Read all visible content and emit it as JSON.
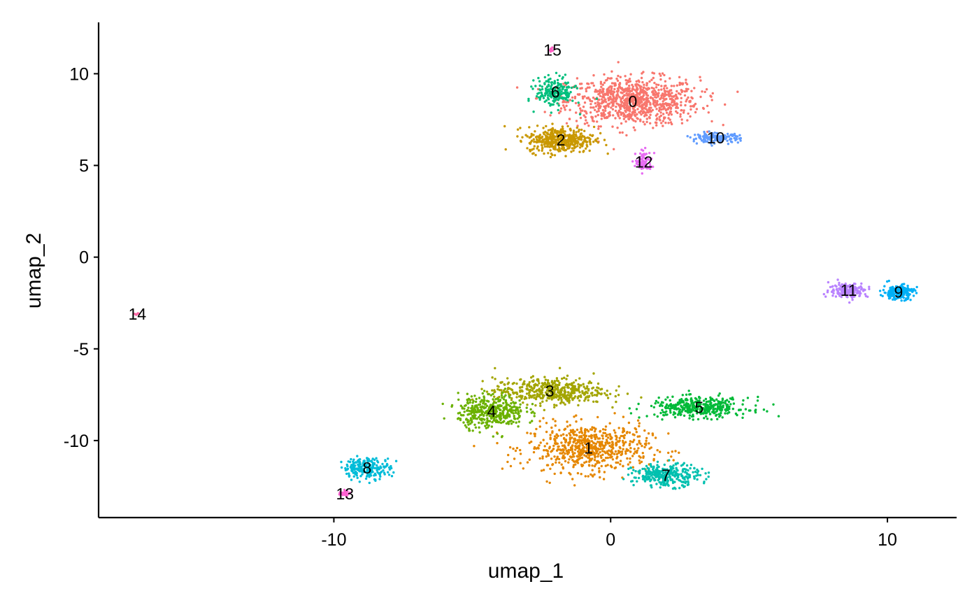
{
  "chart_data": {
    "type": "scatter",
    "title": "",
    "xlabel": "umap_1",
    "ylabel": "umap_2",
    "xlim": [
      -18.5,
      12.5
    ],
    "ylim": [
      -14.2,
      12.8
    ],
    "xticks": [
      -10,
      0,
      10
    ],
    "yticks": [
      -10,
      -5,
      0,
      5,
      10
    ],
    "grid": false,
    "legend": "none",
    "clusters": [
      {
        "label": "0",
        "color": "#F8766D",
        "center": [
          0.8,
          8.5
        ],
        "spread": [
          2.4,
          1.3
        ],
        "n": 900
      },
      {
        "label": "1",
        "color": "#E58700",
        "center": [
          -0.8,
          -10.4
        ],
        "spread": [
          2.2,
          1.3
        ],
        "n": 650
      },
      {
        "label": "2",
        "color": "#C99800",
        "center": [
          -1.8,
          6.4
        ],
        "spread": [
          1.2,
          0.7
        ],
        "n": 420
      },
      {
        "label": "3",
        "color": "#A3A500",
        "center": [
          -2.2,
          -7.3
        ],
        "spread": [
          2.0,
          0.7
        ],
        "n": 450
      },
      {
        "label": "4",
        "color": "#6BB100",
        "center": [
          -4.3,
          -8.4
        ],
        "spread": [
          1.2,
          0.9
        ],
        "n": 400
      },
      {
        "label": "5",
        "color": "#00BA38",
        "center": [
          3.2,
          -8.2
        ],
        "spread": [
          1.8,
          0.55
        ],
        "n": 380
      },
      {
        "label": "6",
        "color": "#00BF7D",
        "center": [
          -2.0,
          9.0
        ],
        "spread": [
          0.7,
          0.8
        ],
        "n": 200
      },
      {
        "label": "7",
        "color": "#00C0AF",
        "center": [
          2.0,
          -11.9
        ],
        "spread": [
          1.2,
          0.6
        ],
        "n": 300
      },
      {
        "label": "8",
        "color": "#00BCD8",
        "center": [
          -8.8,
          -11.5
        ],
        "spread": [
          0.85,
          0.55
        ],
        "n": 220
      },
      {
        "label": "9",
        "color": "#00B0F6",
        "center": [
          10.4,
          -1.9
        ],
        "spread": [
          0.55,
          0.4
        ],
        "n": 200
      },
      {
        "label": "10",
        "color": "#619CFF",
        "center": [
          3.8,
          6.5
        ],
        "spread": [
          0.85,
          0.25
        ],
        "n": 160
      },
      {
        "label": "11",
        "color": "#B983FF",
        "center": [
          8.6,
          -1.8
        ],
        "spread": [
          0.7,
          0.4
        ],
        "n": 170
      },
      {
        "label": "12",
        "color": "#E76BF3",
        "center": [
          1.2,
          5.2
        ],
        "spread": [
          0.3,
          0.55
        ],
        "n": 80
      },
      {
        "label": "13",
        "color": "#FD61D1",
        "center": [
          -9.6,
          -12.9
        ],
        "spread": [
          0.25,
          0.2
        ],
        "n": 30
      },
      {
        "label": "14",
        "color": "#FF67A4",
        "center": [
          -17.1,
          -3.1
        ],
        "spread": [
          0.08,
          0.06
        ],
        "n": 6
      },
      {
        "label": "15",
        "color": "#FF61C3",
        "center": [
          -2.1,
          11.3
        ],
        "spread": [
          0.1,
          0.1
        ],
        "n": 8
      }
    ]
  }
}
